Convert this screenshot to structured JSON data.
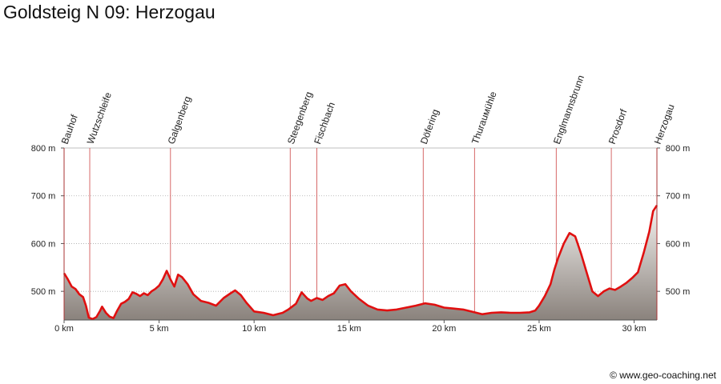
{
  "title": "Goldsteig N 09: Herzogau",
  "copyright": "© www.geo-coaching.net",
  "colors": {
    "line": "#e01010",
    "fill_top": "#f4f2f0",
    "fill_bottom": "#8a827c",
    "grid": "#aaaaaa",
    "marker": "#cc4444"
  },
  "chart_data": {
    "type": "area",
    "title": "Goldsteig N 09: Herzogau",
    "xlabel": "",
    "ylabel": "",
    "xlim": [
      0,
      31.2
    ],
    "ylim": [
      440,
      800
    ],
    "grid": true,
    "x_ticks": [
      {
        "value": 0,
        "label": "0 km"
      },
      {
        "value": 5,
        "label": "5 km"
      },
      {
        "value": 10,
        "label": "10 km"
      },
      {
        "value": 15,
        "label": "15 km"
      },
      {
        "value": 20,
        "label": "20 km"
      },
      {
        "value": 25,
        "label": "25 km"
      },
      {
        "value": 30,
        "label": "30 km"
      }
    ],
    "y_ticks": [
      {
        "value": 500,
        "label": "500 m"
      },
      {
        "value": 600,
        "label": "600 m"
      },
      {
        "value": 700,
        "label": "700 m"
      },
      {
        "value": 800,
        "label": "800 m"
      }
    ],
    "waypoints": [
      {
        "name": "Bauhof",
        "km": 0
      },
      {
        "name": "Wutzschleife",
        "km": 1.35
      },
      {
        "name": "Galgenberg",
        "km": 5.6
      },
      {
        "name": "Steegenberg",
        "km": 11.9
      },
      {
        "name": "Fischbach",
        "km": 13.3
      },
      {
        "name": "Döfering",
        "km": 18.9
      },
      {
        "name": "Thurauмühle",
        "km": 21.6
      },
      {
        "name": "Englmannsbrunn",
        "km": 25.9
      },
      {
        "name": "Prosdorf",
        "km": 28.8
      },
      {
        "name": "Herzogau",
        "km": 31.2
      }
    ],
    "series": [
      {
        "x": [
          0,
          0.2,
          0.4,
          0.6,
          0.8,
          1.0,
          1.15,
          1.3,
          1.5,
          1.7,
          1.9,
          2.0,
          2.2,
          2.4,
          2.6,
          2.8,
          3.0,
          3.2,
          3.4,
          3.6,
          3.8,
          4.0,
          4.2,
          4.4,
          4.6,
          4.8,
          5.0,
          5.2,
          5.4,
          5.6,
          5.8,
          6.0,
          6.2,
          6.5,
          6.8,
          7.2,
          7.6,
          8.0,
          8.4,
          8.8,
          9.0,
          9.3,
          9.6,
          10.0,
          10.5,
          11.0,
          11.5,
          11.8,
          12.0,
          12.2,
          12.5,
          12.8,
          13.0,
          13.3,
          13.6,
          13.9,
          14.2,
          14.5,
          14.8,
          15.1,
          15.5,
          16.0,
          16.5,
          17.0,
          17.5,
          18.0,
          18.5,
          19.0,
          19.5,
          20.0,
          20.5,
          21.0,
          21.5,
          22.0,
          22.5,
          23.0,
          23.5,
          24.0,
          24.5,
          24.8,
          25.0,
          25.3,
          25.6,
          25.8,
          26.0,
          26.3,
          26.6,
          26.9,
          27.2,
          27.5,
          27.8,
          28.1,
          28.4,
          28.7,
          29.0,
          29.3,
          29.6,
          29.9,
          30.2,
          30.5,
          30.8,
          31.0,
          31.2
        ],
        "y": [
          538,
          525,
          510,
          505,
          494,
          488,
          470,
          445,
          442,
          446,
          460,
          468,
          455,
          447,
          444,
          460,
          474,
          478,
          484,
          498,
          495,
          490,
          496,
          492,
          500,
          505,
          512,
          525,
          543,
          525,
          510,
          535,
          530,
          515,
          494,
          480,
          476,
          470,
          486,
          497,
          502,
          492,
          476,
          458,
          455,
          450,
          455,
          462,
          468,
          474,
          498,
          485,
          480,
          486,
          482,
          490,
          496,
          512,
          515,
          500,
          485,
          470,
          462,
          460,
          462,
          466,
          470,
          475,
          472,
          466,
          464,
          462,
          457,
          452,
          455,
          456,
          455,
          455,
          456,
          460,
          470,
          490,
          515,
          545,
          570,
          600,
          622,
          615,
          580,
          540,
          500,
          490,
          500,
          506,
          503,
          510,
          518,
          528,
          540,
          580,
          625,
          668,
          680
        ]
      }
    ]
  }
}
